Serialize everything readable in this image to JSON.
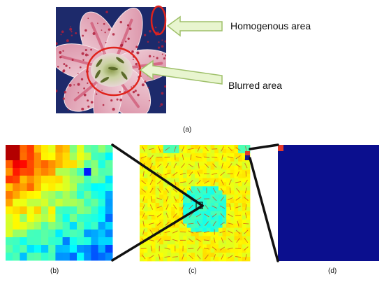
{
  "annotations": {
    "homogenous": "Homogenous area",
    "blurred": "Blurred area"
  },
  "captions": {
    "a": "(a)",
    "b": "(b)",
    "c": "(c)",
    "d": "(d)"
  },
  "colors": {
    "highlight_ellipse": "#e0231c",
    "arrow_fill": "#e8f5cf",
    "arrow_stroke": "#9fc06a",
    "connector": "#111111",
    "panel_d_background": "#0b0f8e",
    "panel_d_hot_cell": "#e63a2a",
    "flower_petal": "#e9b7c4",
    "flower_center": "#c9d2a0",
    "flower_background": "#1d2a6b"
  },
  "panels": {
    "a": "lily-flower-photo",
    "b": "coarse-sharpness-heatmap",
    "c": "fine-sharpness-heatmap-with-arrows",
    "d": "binary-detection-map"
  }
}
